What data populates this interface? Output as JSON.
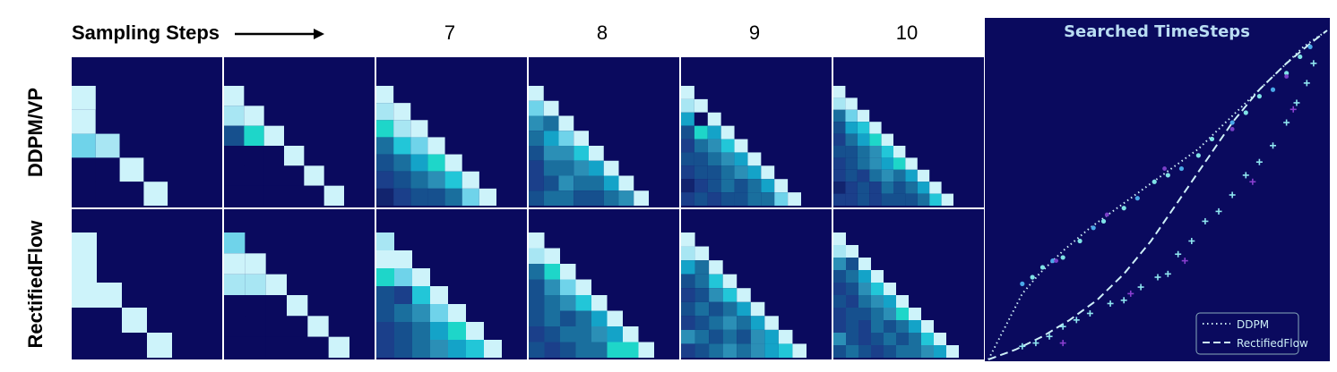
{
  "header": {
    "sampling_steps_label": "Sampling Steps",
    "step_numbers": [
      "",
      "",
      "7",
      "8",
      "9",
      "10"
    ]
  },
  "rows": [
    {
      "label": "DDPM/VP"
    },
    {
      "label": "RectifiedFlow"
    }
  ],
  "matrix_colors": {
    "background": "#0a0a5e",
    "palette": [
      "#0a0a5e",
      "#12246e",
      "#1b3f8a",
      "#16508e",
      "#1a6f9e",
      "#2b8fb6",
      "#14a3c8",
      "#22c6d8",
      "#1ed6c9",
      "#6fd3ea",
      "#a8e6f3",
      "#cdf3fa"
    ]
  },
  "matrices": [
    [
      {
        "n": 5,
        "cells": [
          [
            11
          ],
          [
            11,
            0
          ],
          [
            9,
            10,
            0
          ],
          [
            0,
            0,
            11,
            0
          ],
          [
            0,
            0,
            0,
            11,
            0
          ]
        ]
      },
      {
        "n": 6,
        "cells": [
          [
            11
          ],
          [
            10,
            11
          ],
          [
            3,
            8,
            11
          ],
          [
            0,
            0,
            0,
            11
          ],
          [
            0,
            0,
            0,
            0,
            11
          ],
          [
            0,
            0,
            0,
            0,
            0,
            11
          ]
        ]
      },
      {
        "n": 7,
        "cells": [
          [
            11
          ],
          [
            10,
            11
          ],
          [
            8,
            10,
            11
          ],
          [
            4,
            7,
            9,
            11
          ],
          [
            3,
            4,
            6,
            8,
            11
          ],
          [
            2,
            3,
            4,
            5,
            7,
            11
          ],
          [
            1,
            2,
            3,
            3,
            4,
            9,
            11
          ]
        ]
      },
      {
        "n": 8,
        "cells": [
          [
            11
          ],
          [
            9,
            11
          ],
          [
            5,
            4,
            11
          ],
          [
            4,
            6,
            9,
            11
          ],
          [
            3,
            5,
            5,
            7,
            11
          ],
          [
            2,
            4,
            4,
            5,
            6,
            11
          ],
          [
            2,
            3,
            5,
            4,
            4,
            6,
            11
          ],
          [
            3,
            4,
            4,
            3,
            3,
            4,
            5,
            11
          ]
        ]
      },
      {
        "n": 9,
        "cells": [
          [
            11
          ],
          [
            10,
            11
          ],
          [
            6,
            0,
            11
          ],
          [
            3,
            8,
            6,
            11
          ],
          [
            2,
            4,
            5,
            7,
            11
          ],
          [
            3,
            3,
            4,
            5,
            6,
            11
          ],
          [
            2,
            3,
            3,
            4,
            5,
            6,
            11
          ],
          [
            1,
            2,
            3,
            4,
            3,
            4,
            6,
            11
          ],
          [
            2,
            3,
            2,
            3,
            3,
            4,
            4,
            9,
            11
          ]
        ]
      },
      {
        "n": 10,
        "cells": [
          [
            11
          ],
          [
            10,
            11
          ],
          [
            4,
            9,
            11
          ],
          [
            3,
            6,
            7,
            11
          ],
          [
            2,
            4,
            6,
            8,
            11
          ],
          [
            3,
            3,
            4,
            5,
            7,
            11
          ],
          [
            2,
            3,
            4,
            5,
            6,
            8,
            11
          ],
          [
            2,
            3,
            2,
            4,
            5,
            4,
            6,
            11
          ],
          [
            1,
            2,
            3,
            2,
            4,
            3,
            4,
            6,
            11
          ],
          [
            2,
            2,
            3,
            2,
            3,
            3,
            3,
            4,
            7,
            11
          ]
        ]
      }
    ],
    [
      {
        "n": 5,
        "cells": [
          [
            11
          ],
          [
            11,
            0
          ],
          [
            11,
            11,
            0
          ],
          [
            0,
            0,
            11,
            0
          ],
          [
            0,
            0,
            0,
            11,
            0
          ]
        ]
      },
      {
        "n": 6,
        "cells": [
          [
            9
          ],
          [
            11,
            11
          ],
          [
            10,
            10,
            11
          ],
          [
            0,
            0,
            0,
            11
          ],
          [
            0,
            0,
            0,
            0,
            11
          ],
          [
            0,
            0,
            0,
            0,
            0,
            11
          ]
        ]
      },
      {
        "n": 7,
        "cells": [
          [
            10
          ],
          [
            11,
            11
          ],
          [
            8,
            9,
            11
          ],
          [
            3,
            2,
            7,
            11
          ],
          [
            3,
            4,
            5,
            9,
            11
          ],
          [
            2,
            3,
            4,
            6,
            8,
            11
          ],
          [
            2,
            3,
            4,
            5,
            6,
            7,
            11
          ]
        ]
      },
      {
        "n": 8,
        "cells": [
          [
            11
          ],
          [
            10,
            11
          ],
          [
            4,
            8,
            11
          ],
          [
            3,
            5,
            9,
            11
          ],
          [
            3,
            4,
            5,
            7,
            11
          ],
          [
            3,
            4,
            3,
            4,
            6,
            11
          ],
          [
            2,
            3,
            4,
            4,
            5,
            6,
            11
          ],
          [
            3,
            2,
            3,
            4,
            4,
            8,
            8,
            11
          ]
        ]
      },
      {
        "n": 9,
        "cells": [
          [
            11
          ],
          [
            10,
            11
          ],
          [
            6,
            4,
            11
          ],
          [
            3,
            4,
            7,
            11
          ],
          [
            2,
            3,
            5,
            7,
            11
          ],
          [
            3,
            4,
            3,
            4,
            6,
            11
          ],
          [
            2,
            3,
            4,
            5,
            4,
            6,
            11
          ],
          [
            5,
            4,
            3,
            4,
            3,
            5,
            6,
            11
          ],
          [
            2,
            3,
            4,
            5,
            4,
            5,
            6,
            7,
            11
          ]
        ]
      },
      {
        "n": 10,
        "cells": [
          [
            11
          ],
          [
            10,
            11
          ],
          [
            5,
            3,
            11
          ],
          [
            3,
            4,
            6,
            11
          ],
          [
            2,
            3,
            5,
            7,
            11
          ],
          [
            3,
            2,
            4,
            5,
            6,
            11
          ],
          [
            2,
            3,
            3,
            4,
            5,
            8,
            11
          ],
          [
            2,
            3,
            2,
            4,
            3,
            4,
            6,
            11
          ],
          [
            5,
            3,
            2,
            3,
            4,
            3,
            4,
            7,
            11
          ],
          [
            3,
            4,
            3,
            2,
            3,
            4,
            4,
            5,
            6,
            11
          ]
        ]
      }
    ]
  ],
  "timestep_chart": {
    "title": "Searched TimeSteps",
    "background": "#0a0a5e",
    "legend": [
      {
        "name": "DDPM",
        "style": "dotted"
      },
      {
        "name": "RectifiedFlow",
        "style": "dashed"
      }
    ],
    "legend_position": "bottom-right",
    "ddpm_curve": [
      [
        0,
        0
      ],
      [
        0.05,
        0.1
      ],
      [
        0.1,
        0.2
      ],
      [
        0.15,
        0.26
      ],
      [
        0.22,
        0.33
      ],
      [
        0.3,
        0.4
      ],
      [
        0.38,
        0.46
      ],
      [
        0.46,
        0.52
      ],
      [
        0.54,
        0.58
      ],
      [
        0.62,
        0.64
      ],
      [
        0.7,
        0.72
      ],
      [
        0.78,
        0.8
      ],
      [
        0.86,
        0.88
      ],
      [
        0.93,
        0.95
      ],
      [
        1,
        1
      ]
    ],
    "rf_curve": [
      [
        0,
        0
      ],
      [
        0.08,
        0.03
      ],
      [
        0.16,
        0.07
      ],
      [
        0.24,
        0.12
      ],
      [
        0.32,
        0.18
      ],
      [
        0.4,
        0.26
      ],
      [
        0.48,
        0.36
      ],
      [
        0.56,
        0.48
      ],
      [
        0.64,
        0.6
      ],
      [
        0.72,
        0.72
      ],
      [
        0.8,
        0.82
      ],
      [
        0.88,
        0.9
      ],
      [
        0.95,
        0.96
      ],
      [
        1,
        1
      ]
    ],
    "ddpm_points": [
      [
        0.1,
        0.23
      ],
      [
        0.13,
        0.25
      ],
      [
        0.16,
        0.28
      ],
      [
        0.19,
        0.3
      ],
      [
        0.22,
        0.31
      ],
      [
        0.27,
        0.36
      ],
      [
        0.31,
        0.4
      ],
      [
        0.34,
        0.42
      ],
      [
        0.4,
        0.46
      ],
      [
        0.44,
        0.49
      ],
      [
        0.49,
        0.54
      ],
      [
        0.53,
        0.56
      ],
      [
        0.57,
        0.58
      ],
      [
        0.62,
        0.62
      ],
      [
        0.66,
        0.67
      ],
      [
        0.72,
        0.72
      ],
      [
        0.76,
        0.75
      ],
      [
        0.8,
        0.8
      ],
      [
        0.84,
        0.82
      ],
      [
        0.88,
        0.87
      ],
      [
        0.92,
        0.92
      ],
      [
        0.95,
        0.95
      ]
    ],
    "rf_points": [
      [
        0.1,
        0.04
      ],
      [
        0.14,
        0.05
      ],
      [
        0.18,
        0.07
      ],
      [
        0.22,
        0.1
      ],
      [
        0.26,
        0.12
      ],
      [
        0.3,
        0.14
      ],
      [
        0.36,
        0.17
      ],
      [
        0.4,
        0.18
      ],
      [
        0.45,
        0.22
      ],
      [
        0.5,
        0.25
      ],
      [
        0.53,
        0.26
      ],
      [
        0.56,
        0.32
      ],
      [
        0.6,
        0.36
      ],
      [
        0.64,
        0.42
      ],
      [
        0.68,
        0.45
      ],
      [
        0.72,
        0.5
      ],
      [
        0.76,
        0.56
      ],
      [
        0.8,
        0.6
      ],
      [
        0.84,
        0.65
      ],
      [
        0.88,
        0.72
      ],
      [
        0.91,
        0.78
      ],
      [
        0.94,
        0.84
      ],
      [
        0.96,
        0.9
      ]
    ],
    "purple_points": [
      [
        0.2,
        0.3
      ],
      [
        0.35,
        0.44
      ],
      [
        0.52,
        0.58
      ],
      [
        0.72,
        0.7
      ],
      [
        0.88,
        0.86
      ],
      [
        0.22,
        0.05
      ],
      [
        0.42,
        0.2
      ],
      [
        0.58,
        0.3
      ],
      [
        0.78,
        0.54
      ],
      [
        0.9,
        0.76
      ]
    ]
  }
}
